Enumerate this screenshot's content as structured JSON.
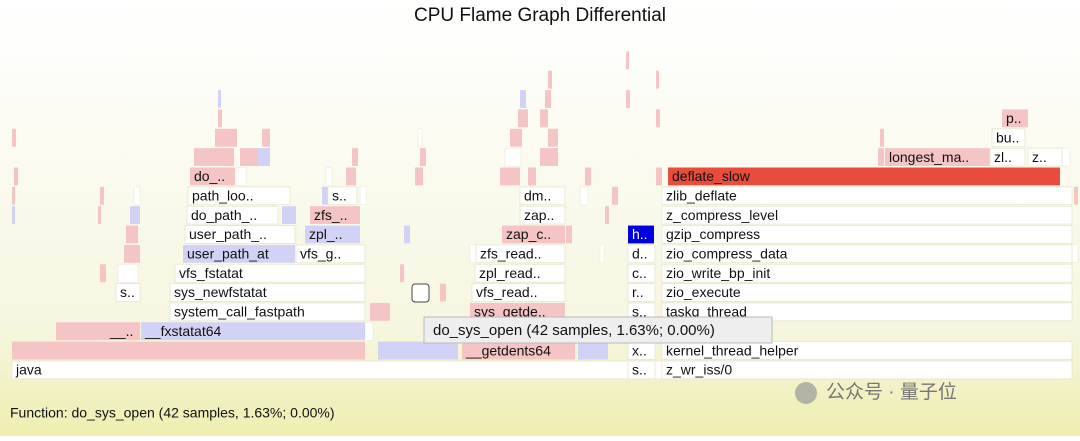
{
  "title": "CPU Flame Graph Differential",
  "frames": [
    {
      "label": "java"
    },
    {
      "label": "s.."
    },
    {
      "label": "z_wr_iss/0"
    },
    {
      "label": "__getdents64"
    },
    {
      "label": "x.."
    },
    {
      "label": "kernel_thread_helper"
    },
    {
      "label": "__.."
    },
    {
      "label": "__fxstatat64"
    },
    {
      "label": "system_call_fastpath"
    },
    {
      "label": "sys_getde.."
    },
    {
      "label": "s.."
    },
    {
      "label": "taskq_thread"
    },
    {
      "label": "s.."
    },
    {
      "label": "sys_newfstatat"
    },
    {
      "label": "vfs_read.."
    },
    {
      "label": "r.."
    },
    {
      "label": "zio_execute"
    },
    {
      "label": "vfs_fstatat"
    },
    {
      "label": "zpl_read.."
    },
    {
      "label": "c.."
    },
    {
      "label": "zio_write_bp_init"
    },
    {
      "label": "user_path_at"
    },
    {
      "label": "vfs_g.."
    },
    {
      "label": "zfs_read.."
    },
    {
      "label": "d.."
    },
    {
      "label": "zio_compress_data"
    },
    {
      "label": "user_path_.."
    },
    {
      "label": "zpl_.."
    },
    {
      "label": "zap_c.."
    },
    {
      "label": "h.."
    },
    {
      "label": "gzip_compress"
    },
    {
      "label": "do_path_.."
    },
    {
      "label": "zfs_.."
    },
    {
      "label": "zap.."
    },
    {
      "label": "z_compress_level"
    },
    {
      "label": "path_loo.."
    },
    {
      "label": "s.."
    },
    {
      "label": "dm.."
    },
    {
      "label": "zlib_deflate"
    },
    {
      "label": "do_.."
    },
    {
      "label": "deflate_slow"
    },
    {
      "label": "longest_ma.."
    },
    {
      "label": "zl.."
    },
    {
      "label": "z.."
    },
    {
      "label": "bu.."
    },
    {
      "label": "p.."
    }
  ],
  "tooltip": "do_sys_open (42 samples, 1.63%; 0.00%)",
  "status": "Function: do_sys_open (42 samples, 1.63%; 0.00%)",
  "watermark": "公众号 · 量子位"
}
